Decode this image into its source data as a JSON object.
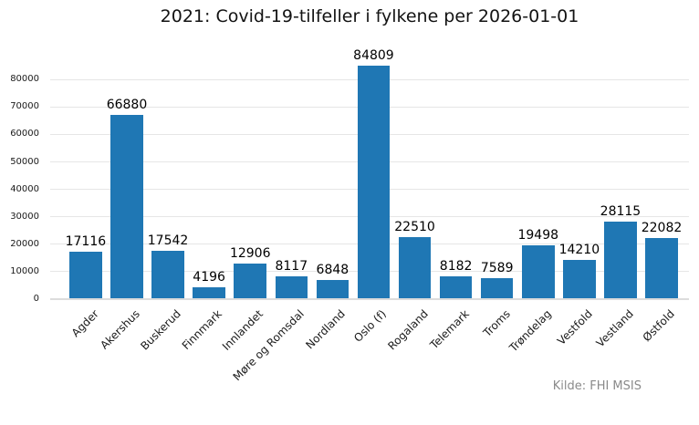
{
  "chart_data": {
    "type": "bar",
    "title": "2021: Covid-19-tilfeller i fylkene per 2026-01-01",
    "caption": "Kilde: FHI MSIS",
    "categories": [
      "Agder",
      "Akershus",
      "Buskerud",
      "Finnmark",
      "Innlandet",
      "Møre og Romsdal",
      "Nordland",
      "Oslo (f)",
      "Rogaland",
      "Telemark",
      "Troms",
      "Trøndelag",
      "Vestfold",
      "Vestland",
      "Østfold"
    ],
    "values": [
      17116,
      66880,
      17542,
      4196,
      12906,
      8117,
      6848,
      84809,
      22510,
      8182,
      7589,
      19498,
      14210,
      28115,
      22082
    ],
    "value_labels": true,
    "xlabel": "",
    "ylabel": "",
    "ylim": [
      0,
      80000
    ],
    "yticks": [
      0,
      10000,
      20000,
      30000,
      40000,
      50000,
      60000,
      70000,
      80000
    ],
    "grid": "horizontal-major",
    "legend": "none",
    "bar_color": "#1f77b4",
    "gridline_color": "#e6e6e6",
    "caption_color": "#8a8a8a"
  }
}
